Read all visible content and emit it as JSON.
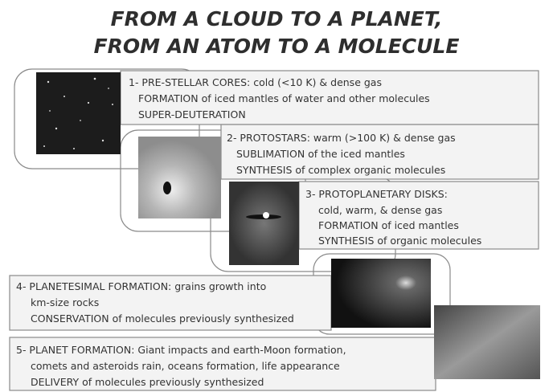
{
  "title": {
    "lines": [
      "FROM A CLOUD TO A PLANET,",
      "FROM AN ATOM TO A MOLECULE"
    ]
  },
  "stages": [
    {
      "lines": [
        "1- PRE-STELLAR CORES: cold (<10 K) & dense gas",
        "FORMATION of iced mantles of water and other molecules",
        "SUPER-DEUTERATION"
      ]
    },
    {
      "lines": [
        "2- PROTOSTARS: warm (>100 K) & dense gas",
        "SUBLIMATION of the iced mantles",
        "SYNTHESIS of complex organic molecules"
      ]
    },
    {
      "lines": [
        "3- PROTOPLANETARY DISKS:",
        "cold, warm, & dense gas",
        "FORMATION of iced mantles",
        "SYNTHESIS of organic molecules"
      ]
    },
    {
      "lines": [
        "4- PLANETESIMAL FORMATION: grains growth into",
        "km-size rocks",
        "CONSERVATION of molecules previously synthesized"
      ]
    },
    {
      "lines": [
        "5- PLANET FORMATION:  Giant impacts and earth-Moon formation,",
        "comets and asteroids rain, oceans formation, life appearance",
        "DELIVERY  of molecules previously synthesized"
      ]
    }
  ]
}
